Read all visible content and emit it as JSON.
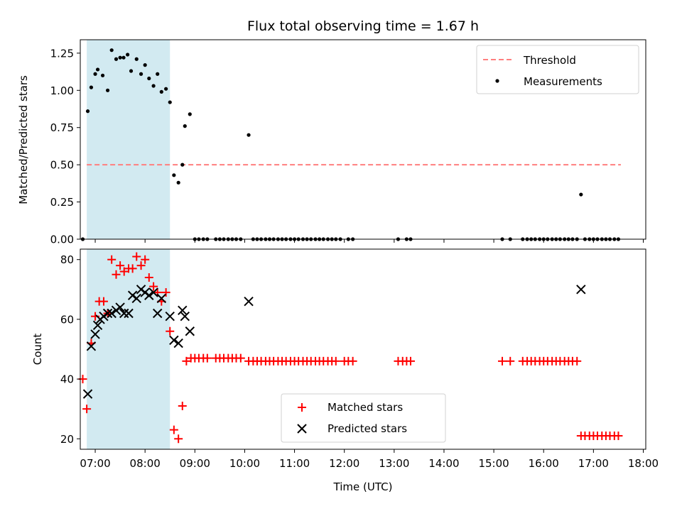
{
  "title": "Flux total observing time = 1.67 h",
  "shade_color": "#add8e6",
  "colors": {
    "threshold": "#ff7f7f",
    "measurements": "#000000",
    "matched": "#ff0000",
    "predicted": "#000000"
  },
  "chart_data": [
    {
      "type": "scatter",
      "ylabel": "Matched/Predicted stars",
      "ylim": [
        0,
        1.34
      ],
      "yticks": [
        "0.00",
        "0.25",
        "0.50",
        "0.75",
        "1.00",
        "1.25"
      ],
      "xlim": [
        6.7,
        18.05
      ],
      "shaded_span": [
        6.83,
        8.5
      ],
      "legend": {
        "position": "upper-right",
        "entries": [
          "Threshold",
          "Measurements"
        ]
      },
      "threshold": {
        "name": "Threshold",
        "value": 0.5,
        "x_range": [
          6.83,
          17.55
        ]
      },
      "series": [
        {
          "name": "Measurements",
          "x": [
            6.75,
            6.85,
            6.92,
            7.0,
            7.05,
            7.15,
            7.25,
            7.33,
            7.42,
            7.5,
            7.57,
            7.65,
            7.72,
            7.83,
            7.92,
            8.0,
            8.08,
            8.17,
            8.25,
            8.33,
            8.42,
            8.5,
            8.58,
            8.67,
            8.75,
            8.8,
            8.9,
            9.0,
            9.08,
            9.17,
            9.25,
            9.42,
            9.5,
            9.58,
            9.67,
            9.75,
            9.83,
            9.92,
            10.08,
            10.17,
            10.25,
            10.33,
            10.42,
            10.5,
            10.58,
            10.67,
            10.75,
            10.83,
            10.92,
            11.0,
            11.08,
            11.17,
            11.25,
            11.33,
            11.42,
            11.5,
            11.58,
            11.67,
            11.75,
            11.83,
            11.92,
            12.08,
            12.17,
            13.08,
            13.25,
            13.33,
            15.17,
            15.33,
            15.58,
            15.67,
            15.75,
            15.83,
            15.92,
            16.0,
            16.08,
            16.17,
            16.25,
            16.33,
            16.42,
            16.5,
            16.58,
            16.67,
            16.75,
            16.83,
            16.92,
            17.0,
            17.08,
            17.17,
            17.25,
            17.33,
            17.42,
            17.5
          ],
          "y": [
            0,
            0.86,
            1.02,
            1.11,
            1.14,
            1.1,
            1.0,
            1.27,
            1.21,
            1.22,
            1.22,
            1.24,
            1.13,
            1.21,
            1.11,
            1.17,
            1.08,
            1.03,
            1.11,
            0.99,
            1.01,
            0.92,
            0.43,
            0.38,
            0.5,
            0.76,
            0.84,
            0,
            0,
            0,
            0,
            0,
            0,
            0,
            0,
            0,
            0,
            0,
            0.7,
            0,
            0,
            0,
            0,
            0,
            0,
            0,
            0,
            0,
            0,
            0,
            0,
            0,
            0,
            0,
            0,
            0,
            0,
            0,
            0,
            0,
            0,
            0,
            0,
            0,
            0,
            0,
            0,
            0,
            0,
            0,
            0,
            0,
            0,
            0,
            0,
            0,
            0,
            0,
            0,
            0,
            0,
            0,
            0.3,
            0,
            0,
            0,
            0,
            0,
            0,
            0,
            0,
            0
          ]
        }
      ]
    },
    {
      "type": "scatter",
      "ylabel": "Count",
      "xlabel": "Time (UTC)",
      "ylim": [
        16.5,
        83.5
      ],
      "yticks": [
        "20",
        "40",
        "60",
        "80"
      ],
      "xlim": [
        6.7,
        18.05
      ],
      "xticks": [
        "07:00",
        "08:00",
        "09:00",
        "10:00",
        "11:00",
        "12:00",
        "13:00",
        "14:00",
        "15:00",
        "16:00",
        "17:00",
        "18:00"
      ],
      "xtick_values": [
        7,
        8,
        9,
        10,
        11,
        12,
        13,
        14,
        15,
        16,
        17,
        18
      ],
      "shaded_span": [
        6.83,
        8.5
      ],
      "legend": {
        "position": "lower-center",
        "entries": [
          "Matched stars",
          "Predicted stars"
        ]
      },
      "series": [
        {
          "name": "Matched stars",
          "marker": "plus",
          "x": [
            6.75,
            6.83,
            6.92,
            7.0,
            7.08,
            7.17,
            7.25,
            7.33,
            7.42,
            7.5,
            7.58,
            7.67,
            7.75,
            7.83,
            7.92,
            8.0,
            8.08,
            8.17,
            8.25,
            8.33,
            8.42,
            8.5,
            8.58,
            8.67,
            8.75,
            8.83,
            8.92,
            9.0,
            9.08,
            9.17,
            9.25,
            9.42,
            9.5,
            9.58,
            9.67,
            9.75,
            9.83,
            9.92,
            10.08,
            10.17,
            10.25,
            10.33,
            10.42,
            10.5,
            10.58,
            10.67,
            10.75,
            10.83,
            10.92,
            11.0,
            11.08,
            11.17,
            11.25,
            11.33,
            11.42,
            11.5,
            11.58,
            11.67,
            11.75,
            11.83,
            12.0,
            12.08,
            12.17,
            13.08,
            13.17,
            13.25,
            13.33,
            15.17,
            15.33,
            15.58,
            15.67,
            15.75,
            15.83,
            15.92,
            16.0,
            16.08,
            16.17,
            16.25,
            16.33,
            16.42,
            16.5,
            16.58,
            16.67,
            16.75,
            16.83,
            16.92,
            17.0,
            17.08,
            17.17,
            17.25,
            17.33,
            17.42,
            17.5
          ],
          "y": [
            40,
            30,
            52,
            61,
            66,
            66,
            62,
            80,
            75,
            78,
            76,
            77,
            77,
            81,
            78,
            80,
            74,
            71,
            69,
            66,
            69,
            56,
            23,
            20,
            31,
            46,
            47,
            47,
            47,
            47,
            47,
            47,
            47,
            47,
            47,
            47,
            47,
            47,
            46,
            46,
            46,
            46,
            46,
            46,
            46,
            46,
            46,
            46,
            46,
            46,
            46,
            46,
            46,
            46,
            46,
            46,
            46,
            46,
            46,
            46,
            46,
            46,
            46,
            46,
            46,
            46,
            46,
            46,
            46,
            46,
            46,
            46,
            46,
            46,
            46,
            46,
            46,
            46,
            46,
            46,
            46,
            46,
            46,
            21,
            21,
            21,
            21,
            21,
            21,
            21,
            21,
            21,
            21
          ]
        },
        {
          "name": "Predicted stars",
          "marker": "x",
          "x": [
            6.85,
            6.92,
            7.0,
            7.05,
            7.1,
            7.17,
            7.25,
            7.33,
            7.42,
            7.5,
            7.58,
            7.67,
            7.75,
            7.83,
            7.92,
            8.0,
            8.08,
            8.17,
            8.25,
            8.33,
            8.5,
            8.58,
            8.67,
            8.75,
            8.8,
            8.9,
            10.08,
            16.75
          ],
          "y": [
            35,
            51,
            55,
            58,
            60,
            61,
            62,
            62,
            63,
            64,
            62,
            62,
            68,
            67,
            70,
            69,
            68,
            69,
            62,
            67,
            61,
            53,
            52,
            63,
            61,
            56,
            66,
            70
          ]
        }
      ]
    }
  ]
}
